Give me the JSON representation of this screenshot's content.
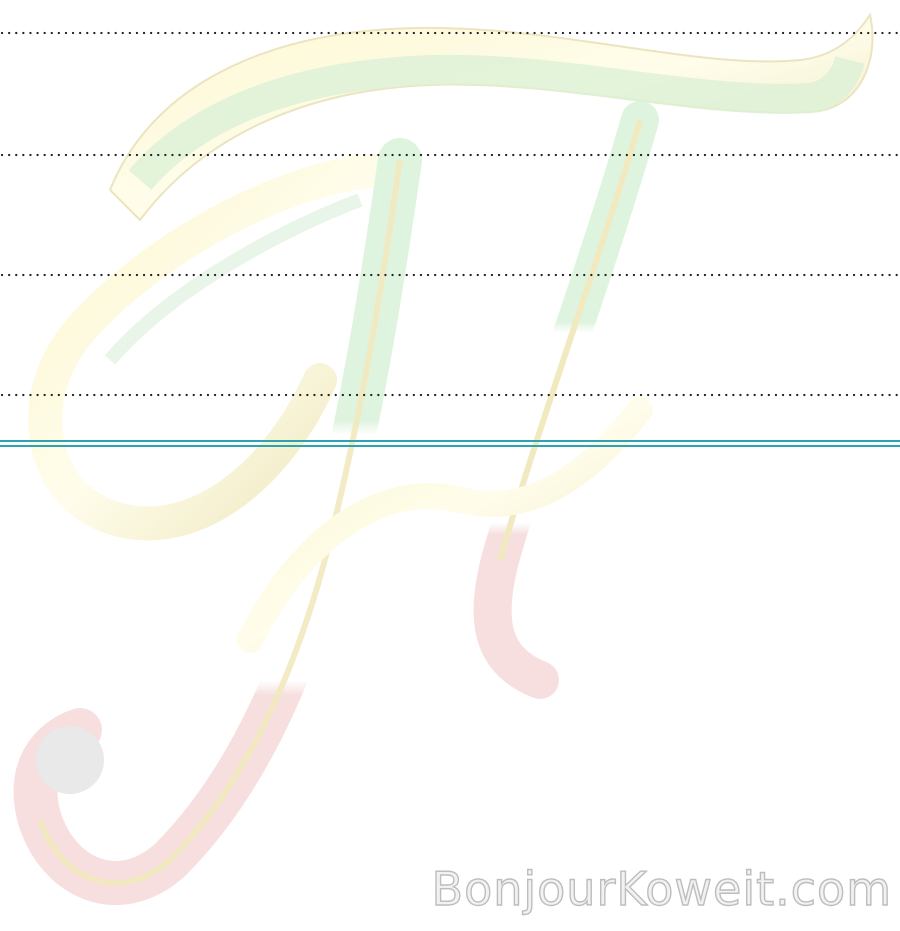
{
  "watermark": {
    "text": "BonjourKoweit.com"
  }
}
